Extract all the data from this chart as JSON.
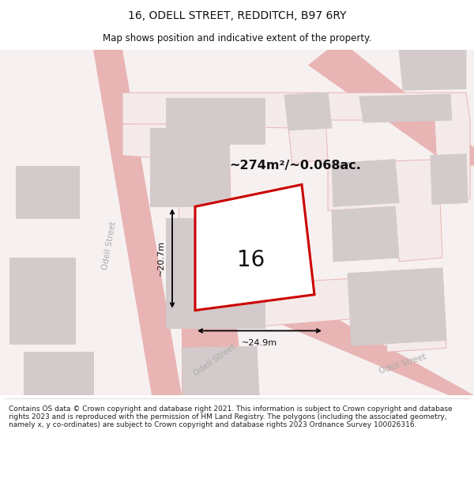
{
  "title": "16, ODELL STREET, REDDITCH, B97 6RY",
  "subtitle": "Map shows position and indicative extent of the property.",
  "area_text": "~274m²/~0.068ac.",
  "dim_width": "~24.9m",
  "dim_height": "~20.7m",
  "property_label": "16",
  "footer": "Contains OS data © Crown copyright and database right 2021. This information is subject to Crown copyright and database rights 2023 and is reproduced with the permission of HM Land Registry. The polygons (including the associated geometry, namely x, y co-ordinates) are subject to Crown copyright and database rights 2023 Ordnance Survey 100026316.",
  "bg_color": "#ffffff",
  "map_bg": "#f7f0f0",
  "road_color": "#e8b4b4",
  "building_color": "#d3cbcb",
  "building_edge": "#d3cbcb",
  "property_fill": "#ffffff",
  "property_line_color": "#cc0000",
  "street_label_color": "#aaaaaa",
  "title_fontsize": 10,
  "subtitle_fontsize": 8.5,
  "footer_fontsize": 6.5
}
